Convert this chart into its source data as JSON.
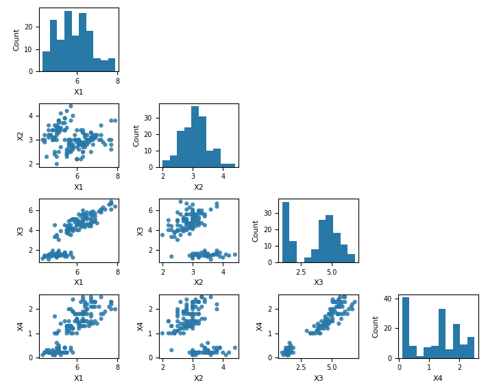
{
  "feature_names": [
    "X1",
    "X2",
    "X3",
    "X4"
  ],
  "scatter_color": "#2878a8",
  "hist_color": "#2878a8",
  "scatter_alpha": 0.85,
  "scatter_size": 20,
  "figsize": [
    7.12,
    5.68
  ],
  "dpi": 100,
  "hist_bins": 10,
  "ylabel_hist": "Count",
  "tick_labelsize": 7,
  "label_fontsize": 8
}
